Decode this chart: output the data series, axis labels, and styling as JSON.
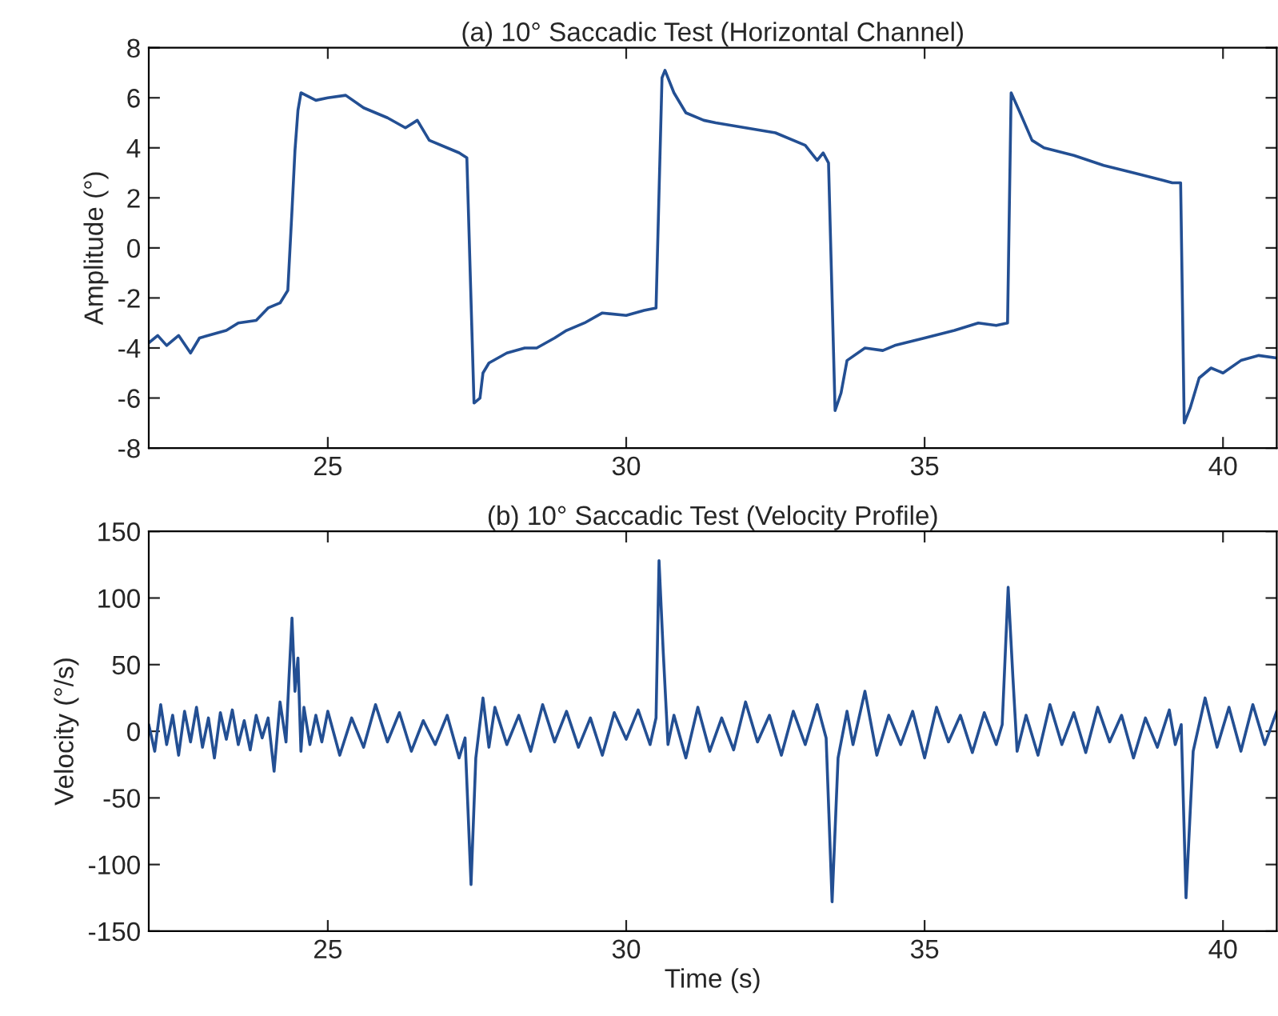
{
  "chart_data": [
    {
      "type": "line",
      "title": "(a) 10° Saccadic Test (Horizontal Channel)",
      "ylabel": "Amplitude (°)",
      "xlim": [
        22,
        40.9
      ],
      "xticks": [
        25,
        30,
        35,
        40
      ],
      "ylim": [
        -8,
        8
      ],
      "yticks": [
        -8,
        -6,
        -4,
        -2,
        0,
        2,
        4,
        6,
        8
      ],
      "grid": false,
      "legend": false,
      "tick_labels": "xy",
      "series": [
        {
          "color": "#234f93",
          "x": [
            22.0,
            22.15,
            22.3,
            22.5,
            22.7,
            22.85,
            23.0,
            23.3,
            23.5,
            23.8,
            24.0,
            24.2,
            24.33,
            24.4,
            24.45,
            24.5,
            24.55,
            24.8,
            25.0,
            25.3,
            25.6,
            25.8,
            26.0,
            26.3,
            26.5,
            26.7,
            27.0,
            27.2,
            27.33,
            27.45,
            27.55,
            27.6,
            27.7,
            28.0,
            28.3,
            28.5,
            28.8,
            29.0,
            29.3,
            29.6,
            30.0,
            30.3,
            30.5,
            30.6,
            30.65,
            30.8,
            31.0,
            31.3,
            31.5,
            32.0,
            32.5,
            33.0,
            33.2,
            33.3,
            33.39,
            33.5,
            33.6,
            33.7,
            34.0,
            34.3,
            34.5,
            35.0,
            35.5,
            35.9,
            36.2,
            36.39,
            36.45,
            36.6,
            36.8,
            37.0,
            37.5,
            38.0,
            38.5,
            39.0,
            39.15,
            39.29,
            39.35,
            39.45,
            39.6,
            39.8,
            40.0,
            40.3,
            40.6,
            40.9
          ],
          "values": [
            -3.8,
            -3.5,
            -3.9,
            -3.5,
            -4.2,
            -3.6,
            -3.5,
            -3.3,
            -3.0,
            -2.9,
            -2.4,
            -2.2,
            -1.7,
            1.5,
            3.9,
            5.5,
            6.2,
            5.9,
            6.0,
            6.1,
            5.6,
            5.4,
            5.2,
            4.8,
            5.1,
            4.3,
            4.0,
            3.8,
            3.6,
            -6.2,
            -6.0,
            -5.0,
            -4.6,
            -4.2,
            -4.0,
            -4.0,
            -3.6,
            -3.3,
            -3.0,
            -2.6,
            -2.7,
            -2.5,
            -2.4,
            6.8,
            7.1,
            6.2,
            5.4,
            5.1,
            5.0,
            4.8,
            4.6,
            4.1,
            3.5,
            3.8,
            3.4,
            -6.5,
            -5.8,
            -4.5,
            -4.0,
            -4.1,
            -3.9,
            -3.6,
            -3.3,
            -3.0,
            -3.1,
            -3.0,
            6.2,
            5.4,
            4.3,
            4.0,
            3.7,
            3.3,
            3.0,
            2.7,
            2.6,
            2.6,
            -7.0,
            -6.4,
            -5.2,
            -4.8,
            -5.0,
            -4.5,
            -4.3,
            -4.4
          ]
        }
      ]
    },
    {
      "type": "line",
      "title": "(b) 10° Saccadic Test (Velocity Profile)",
      "xlabel": "Time (s)",
      "ylabel": "Velocity (°/s)",
      "xlim": [
        22,
        40.9
      ],
      "xticks": [
        25,
        30,
        35,
        40
      ],
      "ylim": [
        -150,
        150
      ],
      "yticks": [
        -150,
        -100,
        -50,
        0,
        50,
        100,
        150
      ],
      "grid": false,
      "legend": false,
      "series": [
        {
          "color": "#234f93",
          "x": [
            22.0,
            22.1,
            22.2,
            22.3,
            22.4,
            22.5,
            22.6,
            22.7,
            22.8,
            22.9,
            23.0,
            23.1,
            23.2,
            23.3,
            23.4,
            23.5,
            23.6,
            23.7,
            23.8,
            23.9,
            24.0,
            24.1,
            24.2,
            24.3,
            24.35,
            24.4,
            24.45,
            24.5,
            24.55,
            24.6,
            24.7,
            24.8,
            24.9,
            25.0,
            25.2,
            25.4,
            25.6,
            25.8,
            26.0,
            26.2,
            26.4,
            26.6,
            26.8,
            27.0,
            27.2,
            27.3,
            27.4,
            27.48,
            27.6,
            27.7,
            27.8,
            28.0,
            28.2,
            28.4,
            28.6,
            28.8,
            29.0,
            29.2,
            29.4,
            29.6,
            29.8,
            30.0,
            30.2,
            30.4,
            30.5,
            30.55,
            30.62,
            30.7,
            30.8,
            31.0,
            31.2,
            31.4,
            31.6,
            31.8,
            32.0,
            32.2,
            32.4,
            32.6,
            32.8,
            33.0,
            33.2,
            33.35,
            33.45,
            33.55,
            33.7,
            33.8,
            34.0,
            34.2,
            34.4,
            34.6,
            34.8,
            35.0,
            35.2,
            35.4,
            35.6,
            35.8,
            36.0,
            36.2,
            36.3,
            36.4,
            36.48,
            36.55,
            36.7,
            36.9,
            37.1,
            37.3,
            37.5,
            37.7,
            37.9,
            38.1,
            38.3,
            38.5,
            38.7,
            38.9,
            39.1,
            39.2,
            39.3,
            39.38,
            39.5,
            39.7,
            39.9,
            40.1,
            40.3,
            40.5,
            40.7,
            40.9
          ],
          "values": [
            5,
            -15,
            20,
            -10,
            12,
            -18,
            15,
            -8,
            18,
            -12,
            10,
            -20,
            14,
            -6,
            16,
            -10,
            8,
            -14,
            12,
            -5,
            10,
            -30,
            22,
            -8,
            40,
            85,
            30,
            55,
            -15,
            18,
            -10,
            12,
            -8,
            15,
            -18,
            10,
            -12,
            20,
            -8,
            14,
            -15,
            8,
            -10,
            12,
            -20,
            -5,
            -115,
            -20,
            25,
            -12,
            18,
            -10,
            12,
            -15,
            20,
            -8,
            15,
            -12,
            10,
            -18,
            14,
            -6,
            16,
            -10,
            10,
            128,
            60,
            -10,
            12,
            -20,
            18,
            -15,
            10,
            -14,
            22,
            -8,
            12,
            -18,
            15,
            -10,
            20,
            -5,
            -128,
            -20,
            15,
            -10,
            30,
            -18,
            12,
            -10,
            15,
            -20,
            18,
            -8,
            12,
            -16,
            14,
            -10,
            5,
            108,
            40,
            -15,
            12,
            -18,
            20,
            -10,
            14,
            -16,
            18,
            -8,
            12,
            -20,
            10,
            -12,
            16,
            -10,
            5,
            -125,
            -15,
            25,
            -12,
            18,
            -15,
            20,
            -10,
            15
          ]
        }
      ]
    }
  ]
}
